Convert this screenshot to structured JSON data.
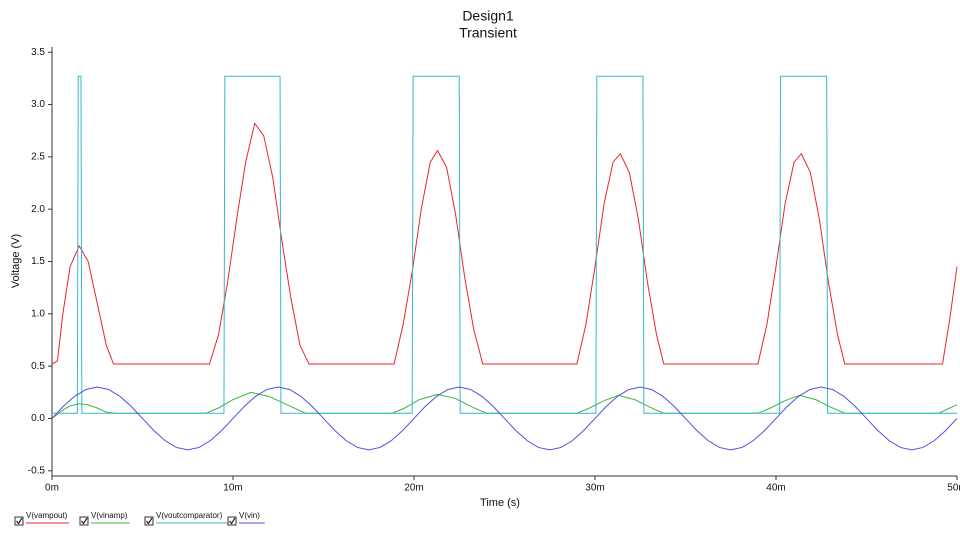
{
  "chart_data": {
    "type": "line",
    "title": "Design1",
    "subtitle": "Transient",
    "xlabel": "Time (s)",
    "ylabel": "Voltage (V)",
    "xlim": [
      0,
      0.05
    ],
    "ylim": [
      -0.55,
      3.55
    ],
    "xticks": [
      {
        "value": 0,
        "label": "0m"
      },
      {
        "value": 0.01,
        "label": "10m"
      },
      {
        "value": 0.02,
        "label": "20m"
      },
      {
        "value": 0.03,
        "label": "30m"
      },
      {
        "value": 0.04,
        "label": "40m"
      },
      {
        "value": 0.05,
        "label": "50m"
      }
    ],
    "yticks": [
      -0.5,
      {
        "value": 0,
        "label": "0.0"
      },
      0.5,
      {
        "value": 1,
        "label": "1.0"
      },
      1.5,
      {
        "value": 2,
        "label": "2.0"
      },
      2.5,
      {
        "value": 3,
        "label": "3.0"
      },
      3.5
    ],
    "grid": false,
    "legend": "bottom-left",
    "series": [
      {
        "name": "V(vampout)",
        "color": "#e8262a",
        "x": [
          0,
          0.0003,
          0.0006,
          0.001,
          0.0015,
          0.002,
          0.0025,
          0.003,
          0.0034,
          0.0087,
          0.0092,
          0.0097,
          0.0102,
          0.0107,
          0.0112,
          0.0117,
          0.0122,
          0.0127,
          0.0132,
          0.0137,
          0.0142,
          0.0189,
          0.0194,
          0.0199,
          0.0204,
          0.0209,
          0.0213,
          0.0218,
          0.0223,
          0.0228,
          0.0233,
          0.0238,
          0.029,
          0.0295,
          0.03,
          0.0305,
          0.031,
          0.0314,
          0.0319,
          0.0324,
          0.0329,
          0.0334,
          0.0338,
          0.039,
          0.0395,
          0.04,
          0.0405,
          0.041,
          0.0414,
          0.0419,
          0.0424,
          0.0429,
          0.0434,
          0.0438,
          0.0492,
          0.0496,
          0.05
        ],
        "values": [
          0.52,
          0.55,
          1.0,
          1.45,
          1.65,
          1.5,
          1.1,
          0.7,
          0.52,
          0.52,
          0.8,
          1.3,
          1.9,
          2.45,
          2.82,
          2.7,
          2.3,
          1.7,
          1.15,
          0.7,
          0.52,
          0.52,
          0.9,
          1.4,
          2.0,
          2.45,
          2.56,
          2.4,
          1.95,
          1.35,
          0.85,
          0.52,
          0.52,
          0.9,
          1.45,
          2.05,
          2.45,
          2.53,
          2.35,
          1.9,
          1.3,
          0.8,
          0.52,
          0.52,
          0.9,
          1.45,
          2.05,
          2.45,
          2.53,
          2.35,
          1.9,
          1.3,
          0.8,
          0.52,
          0.52,
          0.95,
          1.45
        ]
      },
      {
        "name": "V(vinamp)",
        "color": "#3cb83c",
        "x": [
          0,
          0.0005,
          0.001,
          0.0015,
          0.002,
          0.0025,
          0.003,
          0.0035,
          0.0085,
          0.0092,
          0.01,
          0.011,
          0.012,
          0.013,
          0.014,
          0.0188,
          0.0195,
          0.0203,
          0.0213,
          0.0223,
          0.0232,
          0.024,
          0.029,
          0.0297,
          0.0305,
          0.0313,
          0.0322,
          0.033,
          0.0338,
          0.039,
          0.0397,
          0.0405,
          0.0413,
          0.0422,
          0.043,
          0.0438,
          0.049,
          0.0496,
          0.05
        ],
        "values": [
          0,
          0.07,
          0.12,
          0.14,
          0.13,
          0.1,
          0.06,
          0.05,
          0.05,
          0.1,
          0.18,
          0.25,
          0.21,
          0.13,
          0.05,
          0.05,
          0.1,
          0.18,
          0.23,
          0.19,
          0.11,
          0.05,
          0.05,
          0.1,
          0.17,
          0.22,
          0.18,
          0.11,
          0.05,
          0.05,
          0.1,
          0.17,
          0.22,
          0.18,
          0.11,
          0.05,
          0.05,
          0.1,
          0.13
        ]
      },
      {
        "name": "V(voutcomparator)",
        "color": "#35b9d0",
        "x": [
          0,
          0.0014,
          0.00145,
          0.0016,
          0.00165,
          0.0095,
          0.00955,
          0.0126,
          0.01265,
          0.0199,
          0.01995,
          0.0225,
          0.02255,
          0.03005,
          0.0301,
          0.03265,
          0.0327,
          0.0402,
          0.04025,
          0.0428,
          0.04285,
          0.05
        ],
        "values": [
          0.05,
          0.05,
          3.27,
          3.27,
          0.05,
          0.05,
          3.27,
          3.27,
          0.05,
          0.05,
          3.27,
          3.27,
          0.05,
          0.05,
          3.27,
          3.27,
          0.05,
          0.05,
          3.27,
          3.27,
          0.05,
          0.05
        ]
      },
      {
        "name": "V(vin)",
        "color": "#5050e0",
        "x": [
          0,
          0.000625,
          0.00125,
          0.001875,
          0.0025,
          0.003125,
          0.00375,
          0.004375,
          0.005,
          0.005625,
          0.00625,
          0.006875,
          0.0075,
          0.008125,
          0.00875,
          0.009375,
          0.01,
          0.010625,
          0.01125,
          0.011875,
          0.0125,
          0.013125,
          0.01375,
          0.014375,
          0.015,
          0.015625,
          0.01625,
          0.016875,
          0.0175,
          0.018125,
          0.01875,
          0.019375,
          0.02,
          0.020625,
          0.02125,
          0.021875,
          0.0225,
          0.023125,
          0.02375,
          0.024375,
          0.025,
          0.025625,
          0.02625,
          0.026875,
          0.0275,
          0.028125,
          0.02875,
          0.029375,
          0.03,
          0.030625,
          0.03125,
          0.031875,
          0.0325,
          0.033125,
          0.03375,
          0.034375,
          0.035,
          0.035625,
          0.03625,
          0.036875,
          0.0375,
          0.038125,
          0.03875,
          0.039375,
          0.04,
          0.040625,
          0.04125,
          0.041875,
          0.0425,
          0.043125,
          0.04375,
          0.044375,
          0.045,
          0.045625,
          0.04625,
          0.046875,
          0.0475,
          0.048125,
          0.04875,
          0.049375,
          0.05
        ],
        "values": [
          0,
          0.115,
          0.212,
          0.277,
          0.3,
          0.277,
          0.212,
          0.115,
          0,
          -0.115,
          -0.212,
          -0.277,
          -0.3,
          -0.277,
          -0.212,
          -0.115,
          0,
          0.115,
          0.212,
          0.277,
          0.3,
          0.277,
          0.212,
          0.115,
          0,
          -0.115,
          -0.212,
          -0.277,
          -0.3,
          -0.277,
          -0.212,
          -0.115,
          0,
          0.115,
          0.212,
          0.277,
          0.3,
          0.277,
          0.212,
          0.115,
          0,
          -0.115,
          -0.212,
          -0.277,
          -0.3,
          -0.277,
          -0.212,
          -0.115,
          0,
          0.115,
          0.212,
          0.277,
          0.3,
          0.277,
          0.212,
          0.115,
          0,
          -0.115,
          -0.212,
          -0.277,
          -0.3,
          -0.277,
          -0.212,
          -0.115,
          0,
          0.115,
          0.212,
          0.277,
          0.3,
          0.277,
          0.212,
          0.115,
          0,
          -0.115,
          -0.212,
          -0.277,
          -0.3,
          -0.277,
          -0.212,
          -0.115,
          0
        ]
      }
    ]
  }
}
